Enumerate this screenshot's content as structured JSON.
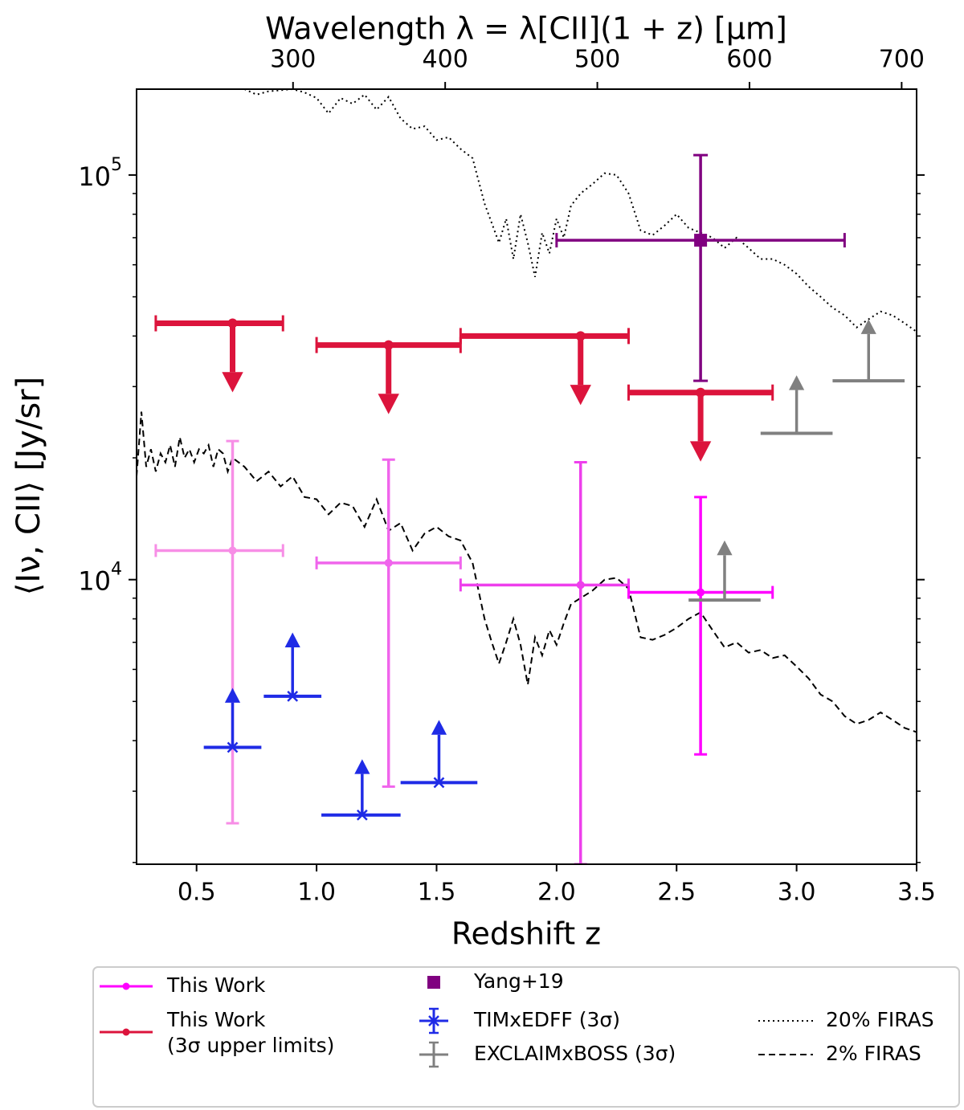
{
  "chart_data": {
    "type": "scatter",
    "title": "",
    "xlabel": "Redshift z",
    "ylabel": "⟨Iν, CII⟩ [Jy/sr]",
    "top_xlabel": "Wavelength λ = λ[CII](1 + z) [μm]",
    "xlim": [
      0.25,
      3.5
    ],
    "ylim": [
      1980,
      163000
    ],
    "yscale": "log",
    "x_ticks": [
      "0.5",
      "1.0",
      "1.5",
      "2.0",
      "2.5",
      "3.0",
      "3.5"
    ],
    "y_ticks": [
      {
        "value": 10000,
        "base": "10",
        "exp": "4"
      },
      {
        "value": 100000,
        "base": "10",
        "exp": "5"
      }
    ],
    "top_ticks_um": [
      "300",
      "400",
      "500",
      "600",
      "700",
      "800",
      "900"
    ],
    "cii_rest_um": 157.74,
    "legend_position": "bottom",
    "series": [
      {
        "name": "This Work",
        "kind": "errorbar",
        "color": "#ff00ff",
        "points": [
          {
            "z": 0.65,
            "z_lo": 0.33,
            "z_hi": 0.86,
            "y": 11800,
            "y_lo": 2500,
            "y_hi": 22000,
            "color": "#f78ee6"
          },
          {
            "z": 1.3,
            "z_lo": 1.0,
            "z_hi": 1.6,
            "y": 11000,
            "y_lo": 3080,
            "y_hi": 19800,
            "color": "#f065ec"
          },
          {
            "z": 2.1,
            "z_lo": 1.6,
            "z_hi": 2.3,
            "y": 9700,
            "y_lo": 1980,
            "y_hi": 19500,
            "color": "#ee3fec"
          },
          {
            "z": 2.6,
            "z_lo": 2.3,
            "z_hi": 2.9,
            "y": 9300,
            "y_lo": 3700,
            "y_hi": 16000,
            "color": "#ff00ff"
          }
        ]
      },
      {
        "name": "This Work (3σ upper limits)",
        "kind": "upper_limit",
        "color": "#dc143c",
        "points": [
          {
            "z": 0.65,
            "z_lo": 0.33,
            "z_hi": 0.86,
            "y": 43000
          },
          {
            "z": 1.3,
            "z_lo": 1.0,
            "z_hi": 1.6,
            "y": 38000
          },
          {
            "z": 2.1,
            "z_lo": 1.6,
            "z_hi": 2.3,
            "y": 40000
          },
          {
            "z": 2.6,
            "z_lo": 2.3,
            "z_hi": 2.9,
            "y": 29000
          }
        ]
      },
      {
        "name": "Yang+19",
        "kind": "errorbar",
        "color": "#800080",
        "points": [
          {
            "z": 2.6,
            "z_lo": 2.0,
            "z_hi": 3.2,
            "y": 69000,
            "y_lo": 31000,
            "y_hi": 112000
          }
        ]
      },
      {
        "name": "TIMxEDFF (3σ)",
        "kind": "lower_limit",
        "color": "#1f2be6",
        "points": [
          {
            "z": 0.65,
            "z_lo": 0.53,
            "z_hi": 0.77,
            "y": 3850,
            "y_top": 5400
          },
          {
            "z": 0.9,
            "z_lo": 0.78,
            "z_hi": 1.02,
            "y": 5150,
            "y_top": 7400
          },
          {
            "z": 1.19,
            "z_lo": 1.02,
            "z_hi": 1.35,
            "y": 2620,
            "y_top": 3600
          },
          {
            "z": 1.51,
            "z_lo": 1.35,
            "z_hi": 1.67,
            "y": 3150,
            "y_top": 4500
          }
        ]
      },
      {
        "name": "EXCLAIMxBOSS (3σ)",
        "kind": "lower_limit",
        "color": "#808080",
        "points": [
          {
            "z": 2.7,
            "z_lo": 2.55,
            "z_hi": 2.85,
            "y": 8900,
            "y_top": 12500
          },
          {
            "z": 3.0,
            "z_lo": 2.85,
            "z_hi": 3.15,
            "y": 23000,
            "y_top": 32000
          },
          {
            "z": 3.3,
            "z_lo": 3.15,
            "z_hi": 3.45,
            "y": 31000,
            "y_top": 44000
          }
        ]
      },
      {
        "name": "20% FIRAS",
        "kind": "line",
        "style": "dotted",
        "color": "#000000",
        "x": [
          0.7,
          0.75,
          0.8,
          0.85,
          0.9,
          0.95,
          1.0,
          1.05,
          1.1,
          1.15,
          1.2,
          1.25,
          1.3,
          1.35,
          1.4,
          1.45,
          1.5,
          1.55,
          1.6,
          1.65,
          1.7,
          1.73,
          1.76,
          1.79,
          1.82,
          1.85,
          1.88,
          1.91,
          1.94,
          1.97,
          2.0,
          2.03,
          2.06,
          2.1,
          2.15,
          2.2,
          2.25,
          2.3,
          2.35,
          2.4,
          2.45,
          2.5,
          2.55,
          2.6,
          2.65,
          2.7,
          2.75,
          2.8,
          2.85,
          2.9,
          2.95,
          3.0,
          3.05,
          3.1,
          3.15,
          3.2,
          3.25,
          3.3,
          3.35,
          3.4,
          3.45,
          3.5
        ],
        "y": [
          163000,
          158000,
          161000,
          162000,
          163000,
          160000,
          155000,
          142000,
          155000,
          150000,
          158000,
          145000,
          156000,
          138000,
          130000,
          132000,
          122000,
          124000,
          116000,
          110000,
          85000,
          76000,
          68000,
          78000,
          62000,
          80000,
          68000,
          56000,
          72000,
          64000,
          78000,
          70000,
          84000,
          90000,
          95000,
          101000,
          100000,
          90000,
          73000,
          71000,
          75000,
          80000,
          74000,
          72000,
          70000,
          66000,
          70000,
          66000,
          62000,
          62000,
          60000,
          57000,
          53000,
          50000,
          47000,
          45000,
          42000,
          44000,
          46000,
          45000,
          43000,
          41000
        ]
      },
      {
        "name": "2% FIRAS",
        "kind": "line",
        "style": "dashed",
        "color": "#000000",
        "x": [
          0.25,
          0.27,
          0.29,
          0.31,
          0.33,
          0.35,
          0.37,
          0.39,
          0.41,
          0.43,
          0.45,
          0.47,
          0.49,
          0.51,
          0.53,
          0.55,
          0.57,
          0.59,
          0.61,
          0.63,
          0.65,
          0.7,
          0.75,
          0.8,
          0.85,
          0.9,
          0.95,
          1.0,
          1.05,
          1.1,
          1.15,
          1.2,
          1.25,
          1.3,
          1.35,
          1.4,
          1.45,
          1.5,
          1.55,
          1.6,
          1.65,
          1.7,
          1.73,
          1.76,
          1.79,
          1.82,
          1.85,
          1.88,
          1.91,
          1.94,
          1.97,
          2.0,
          2.03,
          2.06,
          2.1,
          2.15,
          2.2,
          2.25,
          2.3,
          2.35,
          2.4,
          2.45,
          2.5,
          2.55,
          2.6,
          2.65,
          2.7,
          2.75,
          2.8,
          2.85,
          2.9,
          2.95,
          3.0,
          3.05,
          3.1,
          3.15,
          3.2,
          3.25,
          3.3,
          3.35,
          3.4,
          3.45,
          3.5
        ],
        "y": [
          18000,
          26000,
          19000,
          21000,
          18500,
          20500,
          19500,
          21500,
          19000,
          22500,
          20000,
          21000,
          19500,
          21000,
          20500,
          21500,
          19000,
          21000,
          20500,
          18500,
          20000,
          19000,
          17500,
          18500,
          17000,
          18000,
          16000,
          15800,
          14500,
          15500,
          15200,
          13500,
          15800,
          13200,
          13800,
          11800,
          13000,
          13500,
          12800,
          12500,
          11000,
          8000,
          7000,
          6200,
          7000,
          8000,
          6900,
          5500,
          7200,
          6500,
          7500,
          6900,
          7800,
          8700,
          9000,
          9400,
          10000,
          10100,
          9500,
          7200,
          7100,
          7300,
          7600,
          8000,
          8300,
          7500,
          6800,
          7000,
          6600,
          6700,
          6400,
          6500,
          6100,
          5700,
          5200,
          5000,
          4600,
          4400,
          4500,
          4700,
          4500,
          4300,
          4200
        ]
      }
    ]
  }
}
